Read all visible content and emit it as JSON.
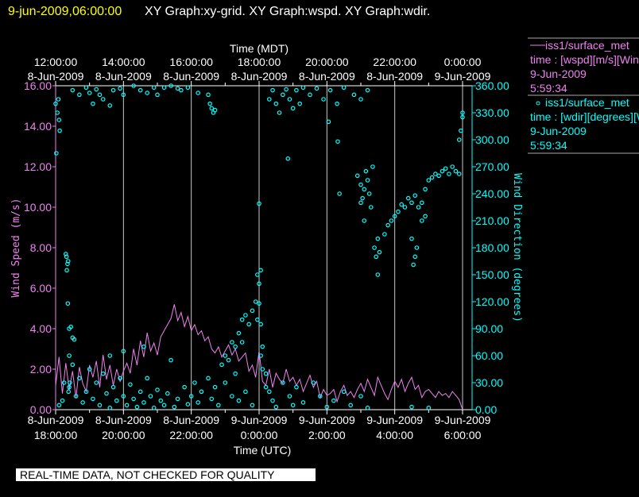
{
  "header": {
    "timestamp": "9-jun-2009,06:00:00",
    "graphs": "XY Graph:xy-grid.  XY Graph:wspd.  XY Graph:wdir."
  },
  "legend": [
    {
      "line1": "iss1/surface_met",
      "line2": "time : [wspd][m/s][Wind",
      "line3": "9-Jun-2009",
      "line4": "5:59:34",
      "symbol": "line"
    },
    {
      "line1": "iss1/surface_met",
      "line2": "time : [wdir][degrees][Wind",
      "line3": "9-Jun-2009",
      "line4": "5:59:34",
      "symbol": "circle"
    }
  ],
  "footer": {
    "notice": "REAL-TIME DATA, NOT CHECKED FOR QUALITY"
  },
  "colors": {
    "wspd": "#ee82ee",
    "wdir": "#00ffff",
    "title": "#ffff00",
    "grid": "#c8c8c8"
  },
  "chart_data": {
    "type": "line",
    "title": "",
    "top_xlabel": "Time (MDT)",
    "xlabel": "Time (UTC)",
    "ylabel": "Wind Speed (m/s)",
    "y2label": "Wind Direction (degrees)",
    "x_units": "hours since 8-Jun-2009 18:00 UTC",
    "xlim": [
      0,
      12
    ],
    "ylim": [
      0,
      16
    ],
    "y2lim": [
      0,
      360
    ],
    "grid": "vertical every 2 hours",
    "bottom_ticks": [
      {
        "date": "8-Jun-2009",
        "time": "18:00:00"
      },
      {
        "date": "8-Jun-2009",
        "time": "20:00:00"
      },
      {
        "date": "8-Jun-2009",
        "time": "22:00:00"
      },
      {
        "date": "9-Jun-2009",
        "time": "0:00:00"
      },
      {
        "date": "9-Jun-2009",
        "time": "2:00:00"
      },
      {
        "date": "9-Jun-2009",
        "time": "4:00:00"
      },
      {
        "date": "9-Jun-2009",
        "time": "6:00:00"
      }
    ],
    "top_ticks": [
      {
        "time": "12:00:00",
        "date": "8-Jun-2009"
      },
      {
        "time": "14:00:00",
        "date": "8-Jun-2009"
      },
      {
        "time": "16:00:00",
        "date": "8-Jun-2009"
      },
      {
        "time": "18:00:00",
        "date": "8-Jun-2009"
      },
      {
        "time": "20:00:00",
        "date": "8-Jun-2009"
      },
      {
        "time": "22:00:00",
        "date": "8-Jun-2009"
      },
      {
        "time": "0:00:00",
        "date": "9-Jun-2009"
      }
    ],
    "y_ticks": [
      "0.00",
      "2.00",
      "4.00",
      "6.00",
      "8.00",
      "10.00",
      "12.00",
      "14.00",
      "16.00"
    ],
    "y2_ticks": [
      "0.00",
      "30.00",
      "60.00",
      "90.00",
      "120.00",
      "150.00",
      "180.00",
      "210.00",
      "240.00",
      "270.00",
      "300.00",
      "330.00",
      "360.00"
    ],
    "series": [
      {
        "name": "wspd",
        "type": "line",
        "axis": "left",
        "x_start": 0,
        "x_step": 0.1,
        "values": [
          1.2,
          2.6,
          0.8,
          2.3,
          1.0,
          1.9,
          0.6,
          2.1,
          1.3,
          0.9,
          2.2,
          1.6,
          2.4,
          1.1,
          2.7,
          1.5,
          2.2,
          1.2,
          2.0,
          1.4,
          1.9,
          2.3,
          1.8,
          3.0,
          2.2,
          3.4,
          2.6,
          3.8,
          2.9,
          3.3,
          2.7,
          3.6,
          3.9,
          4.2,
          4.5,
          5.2,
          4.4,
          4.8,
          4.1,
          4.6,
          3.9,
          4.2,
          3.7,
          3.9,
          3.4,
          3.6,
          3.0,
          2.8,
          3.1,
          2.6,
          2.9,
          3.2,
          2.7,
          3.0,
          2.4,
          2.6,
          2.8,
          1.9,
          2.2,
          1.6,
          2.9,
          1.4,
          1.2,
          2.0,
          1.1,
          1.8,
          1.5,
          1.3,
          2.0,
          1.4,
          1.6,
          1.2,
          1.5,
          0.9,
          1.3,
          1.7,
          1.1,
          1.4,
          0.6,
          1.0,
          0.7,
          0.8,
          1.0,
          0.4,
          0.9,
          1.2,
          0.7,
          0.9,
          0.6,
          1.0,
          1.3,
          0.9,
          1.5,
          1.1,
          0.7,
          1.6,
          1.2,
          0.8,
          0.5,
          1.0,
          1.4,
          1.1,
          1.5,
          0.9,
          1.3,
          1.6,
          1.0,
          1.2,
          0.6,
          0.9,
          1.0,
          0.8,
          0.6,
          0.9,
          0.7,
          0.8,
          0.6,
          0.9,
          0.7,
          0.5,
          0.0
        ]
      },
      {
        "name": "wdir",
        "type": "scatter",
        "axis": "right",
        "points": [
          [
            0.0,
            340
          ],
          [
            0.05,
            330
          ],
          [
            0.08,
            345
          ],
          [
            0.1,
            322
          ],
          [
            0.02,
            285
          ],
          [
            0.12,
            310
          ],
          [
            0.3,
            173
          ],
          [
            0.32,
            170
          ],
          [
            0.35,
            162
          ],
          [
            0.37,
            165
          ],
          [
            0.33,
            155
          ],
          [
            0.36,
            118
          ],
          [
            0.4,
            90
          ],
          [
            0.45,
            92
          ],
          [
            0.4,
            60
          ],
          [
            0.5,
            80
          ],
          [
            0.55,
            78
          ],
          [
            0.38,
            20
          ],
          [
            0.42,
            30
          ],
          [
            0.5,
            355
          ],
          [
            0.7,
            350
          ],
          [
            0.9,
            358
          ],
          [
            1.0,
            352
          ],
          [
            1.1,
            340
          ],
          [
            1.2,
            356
          ],
          [
            1.3,
            350
          ],
          [
            1.4,
            345
          ],
          [
            1.6,
            338
          ],
          [
            1.7,
            355
          ],
          [
            1.9,
            357
          ],
          [
            2.0,
            350
          ],
          [
            2.3,
            360
          ],
          [
            2.5,
            355
          ],
          [
            2.7,
            352
          ],
          [
            2.9,
            358
          ],
          [
            3.0,
            350
          ],
          [
            3.2,
            358
          ],
          [
            3.4,
            360
          ],
          [
            3.6,
            357
          ],
          [
            3.7,
            355
          ],
          [
            3.9,
            358
          ],
          [
            4.2,
            352
          ],
          [
            4.5,
            350
          ],
          [
            4.55,
            340
          ],
          [
            4.6,
            335
          ],
          [
            4.65,
            330
          ],
          [
            4.7,
            333
          ],
          [
            4.9,
            50
          ],
          [
            5.0,
            60
          ],
          [
            5.2,
            75
          ],
          [
            5.3,
            70
          ],
          [
            5.4,
            85
          ],
          [
            5.5,
            100
          ],
          [
            5.6,
            105
          ],
          [
            5.7,
            95
          ],
          [
            5.8,
            110
          ],
          [
            5.9,
            120
          ],
          [
            6.0,
            140
          ],
          [
            6.05,
            155
          ],
          [
            6.0,
            229
          ],
          [
            5.95,
            150
          ],
          [
            6.0,
            118
          ],
          [
            5.95,
            100
          ],
          [
            6.05,
            95
          ],
          [
            6.1,
            70
          ],
          [
            6.05,
            60
          ],
          [
            6.1,
            45
          ],
          [
            6.2,
            40
          ],
          [
            6.3,
            20
          ],
          [
            6.3,
            345
          ],
          [
            6.4,
            355
          ],
          [
            6.5,
            340
          ],
          [
            6.6,
            330
          ],
          [
            6.7,
            350
          ],
          [
            6.8,
            356
          ],
          [
            6.9,
            345
          ],
          [
            7.0,
            335
          ],
          [
            7.1,
            355
          ],
          [
            7.2,
            340
          ],
          [
            7.3,
            358
          ],
          [
            7.5,
            350
          ],
          [
            7.7,
            357
          ],
          [
            7.9,
            345
          ],
          [
            8.1,
            355
          ],
          [
            8.3,
            340
          ],
          [
            8.5,
            358
          ],
          [
            8.8,
            350
          ],
          [
            9.0,
            345
          ],
          [
            9.2,
            355
          ],
          [
            8.05,
            320
          ],
          [
            6.85,
            279
          ],
          [
            8.32,
            298
          ],
          [
            8.37,
            240
          ],
          [
            8.9,
            260
          ],
          [
            9.0,
            250
          ],
          [
            9.05,
            235
          ],
          [
            9.1,
            245
          ],
          [
            9.15,
            265
          ],
          [
            9.2,
            255
          ],
          [
            9.25,
            240
          ],
          [
            9.3,
            225
          ],
          [
            9.35,
            270
          ],
          [
            9.1,
            210
          ],
          [
            9.0,
            230
          ],
          [
            9.4,
            180
          ],
          [
            9.45,
            170
          ],
          [
            9.5,
            190
          ],
          [
            9.5,
            150
          ],
          [
            9.55,
            175
          ],
          [
            9.7,
            195
          ],
          [
            9.8,
            205
          ],
          [
            9.9,
            210
          ],
          [
            10.0,
            215
          ],
          [
            10.1,
            220
          ],
          [
            10.2,
            228
          ],
          [
            10.3,
            225
          ],
          [
            10.4,
            235
          ],
          [
            10.5,
            230
          ],
          [
            10.6,
            238
          ],
          [
            10.7,
            225
          ],
          [
            10.8,
            210
          ],
          [
            10.9,
            215
          ],
          [
            10.55,
            161
          ],
          [
            10.6,
            170
          ],
          [
            10.65,
            180
          ],
          [
            10.5,
            190
          ],
          [
            10.8,
            230
          ],
          [
            10.9,
            245
          ],
          [
            11.0,
            255
          ],
          [
            11.1,
            258
          ],
          [
            11.2,
            262
          ],
          [
            11.3,
            260
          ],
          [
            11.4,
            265
          ],
          [
            11.5,
            268
          ],
          [
            11.6,
            262
          ],
          [
            11.7,
            270
          ],
          [
            11.8,
            265
          ],
          [
            11.9,
            262
          ],
          [
            11.9,
            300
          ],
          [
            11.95,
            310
          ],
          [
            12.0,
            325
          ],
          [
            12.0,
            330
          ],
          [
            0.1,
            5
          ],
          [
            0.2,
            10
          ],
          [
            0.25,
            30
          ],
          [
            0.4,
            25
          ],
          [
            0.5,
            50
          ],
          [
            0.6,
            15
          ],
          [
            0.7,
            35
          ],
          [
            0.8,
            8
          ],
          [
            0.9,
            20
          ],
          [
            1.0,
            45
          ],
          [
            1.1,
            12
          ],
          [
            1.2,
            30
          ],
          [
            1.3,
            5
          ],
          [
            1.4,
            40
          ],
          [
            1.5,
            18
          ],
          [
            1.6,
            2
          ],
          [
            1.7,
            25
          ],
          [
            1.8,
            10
          ],
          [
            1.9,
            35
          ],
          [
            2.0,
            15
          ],
          [
            2.1,
            5
          ],
          [
            2.2,
            28
          ],
          [
            2.3,
            12
          ],
          [
            2.4,
            3
          ],
          [
            2.5,
            20
          ],
          [
            2.6,
            8
          ],
          [
            2.7,
            35
          ],
          [
            2.8,
            15
          ],
          [
            2.9,
            2
          ],
          [
            3.0,
            22
          ],
          [
            3.1,
            10
          ],
          [
            3.2,
            5
          ],
          [
            3.3,
            18
          ],
          [
            3.5,
            3
          ],
          [
            3.6,
            12
          ],
          [
            3.8,
            25
          ],
          [
            3.9,
            6
          ],
          [
            4.0,
            15
          ],
          [
            4.1,
            30
          ],
          [
            4.2,
            8
          ],
          [
            4.3,
            20
          ],
          [
            4.5,
            35
          ],
          [
            4.6,
            12
          ],
          [
            4.7,
            25
          ],
          [
            4.8,
            5
          ],
          [
            5.0,
            30
          ],
          [
            5.2,
            15
          ],
          [
            5.3,
            40
          ],
          [
            5.4,
            10
          ],
          [
            5.6,
            20
          ],
          [
            5.8,
            5
          ],
          [
            6.2,
            25
          ],
          [
            6.4,
            10
          ],
          [
            6.5,
            3
          ],
          [
            6.7,
            30
          ],
          [
            6.9,
            15
          ],
          [
            7.0,
            5
          ],
          [
            7.1,
            25
          ],
          [
            7.3,
            8
          ],
          [
            7.6,
            30
          ],
          [
            7.8,
            15
          ],
          [
            8.0,
            3
          ],
          [
            8.2,
            10
          ],
          [
            8.5,
            20
          ],
          [
            8.7,
            5
          ],
          [
            9.0,
            15
          ],
          [
            9.2,
            2
          ],
          [
            10.5,
            3
          ],
          [
            11.0,
            2
          ],
          [
            1.6,
            60
          ],
          [
            2.0,
            65
          ],
          [
            2.6,
            70
          ],
          [
            3.4,
            55
          ],
          [
            5.5,
            75
          ],
          [
            5.1,
            55
          ]
        ]
      }
    ]
  }
}
